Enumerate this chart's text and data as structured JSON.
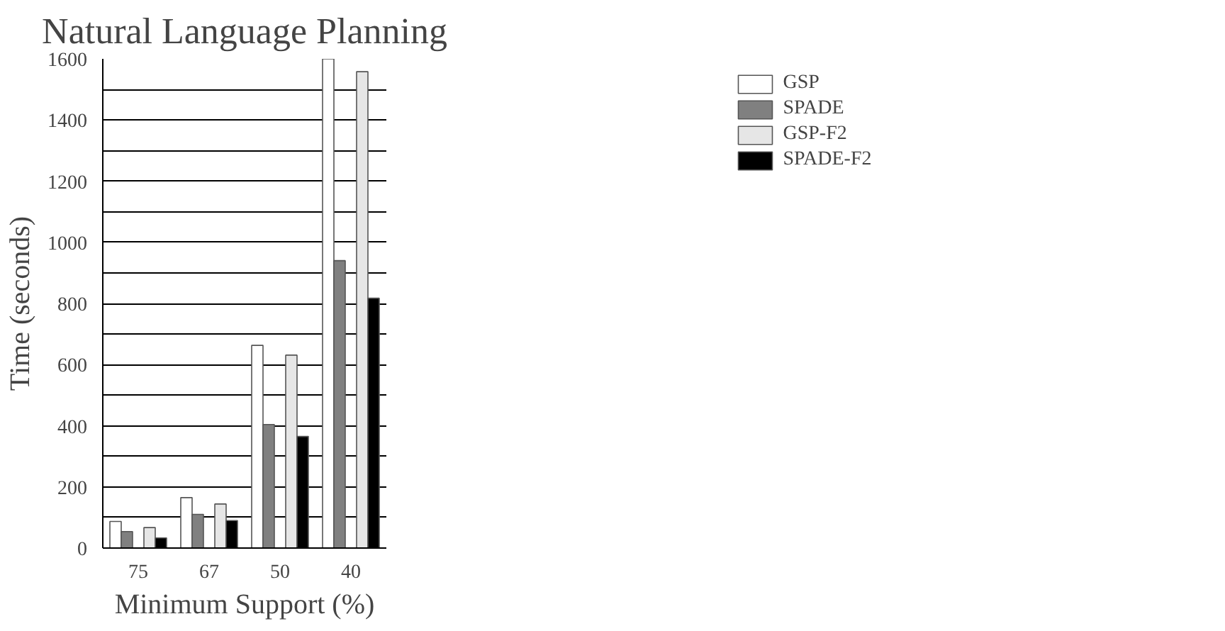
{
  "chart_data": {
    "type": "bar",
    "title": "Natural Language Planning",
    "xlabel": "Minimum Support (%)",
    "ylabel": "Time (seconds)",
    "categories": [
      "75",
      "67",
      "50",
      "40"
    ],
    "series": [
      {
        "name": "GSP",
        "color": "#ffffff",
        "values": [
          87,
          165,
          663,
          1600
        ]
      },
      {
        "name": "SPADE",
        "color": "#808080",
        "values": [
          54,
          110,
          404,
          940
        ]
      },
      {
        "name": "GSP-F2",
        "color": "#e6e6e6",
        "values": [
          67,
          144,
          631,
          1558
        ]
      },
      {
        "name": "SPADE-F2",
        "color": "#000000",
        "values": [
          33,
          90,
          365,
          817
        ]
      }
    ],
    "ylim": [
      0,
      1600
    ],
    "yticks": [
      0,
      {
        "value": 100,
        "label": null
      },
      200,
      {
        "value": 300,
        "label": null
      },
      400,
      {
        "value": 500,
        "label": null
      },
      600,
      {
        "value": 700,
        "label": null
      },
      800,
      {
        "value": 900,
        "label": null
      },
      1000,
      {
        "value": 1100,
        "label": null
      },
      1200,
      {
        "value": 1300,
        "label": null
      },
      1400,
      {
        "value": 1500,
        "label": null
      },
      1600
    ],
    "grid": "y",
    "legend": "top right"
  }
}
